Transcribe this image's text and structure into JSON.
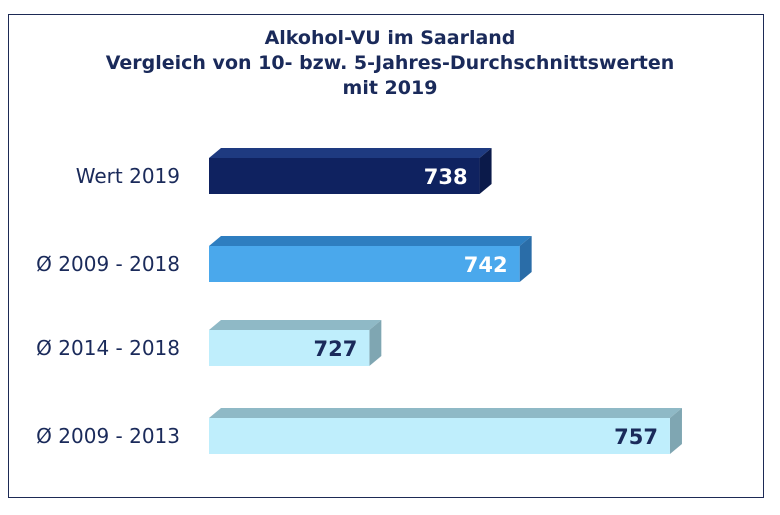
{
  "chart_data": {
    "type": "bar",
    "orientation": "horizontal",
    "title": [
      "Alkohol-VU im Saarland",
      "Vergleich von 10- bzw. 5-Jahres-Durchschnittswerten",
      "mit 2019"
    ],
    "categories": [
      "Wert 2019",
      "Ø 2009 - 2018",
      "Ø 2014 - 2018",
      "Ø 2009 - 2013"
    ],
    "values": [
      738,
      742,
      727,
      757
    ],
    "value_labels": [
      "738",
      "742",
      "727",
      "757"
    ],
    "xlim": [
      711,
      759
    ],
    "grid": false,
    "legend": "none",
    "colors": [
      {
        "front": "#0f2260",
        "top": "#1e3a80",
        "side": "#0b1a4a",
        "text": "#ffffff"
      },
      {
        "front": "#4aa8ec",
        "top": "#2e7ec0",
        "side": "#2a6da8",
        "text": "#ffffff"
      },
      {
        "front": "#bfeefc",
        "top": "#8fb9c6",
        "side": "#7fa6b2",
        "text": "#1a2a5a"
      },
      {
        "front": "#bfeefc",
        "top": "#8fb9c6",
        "side": "#7fa6b2",
        "text": "#1a2a5a"
      }
    ]
  }
}
